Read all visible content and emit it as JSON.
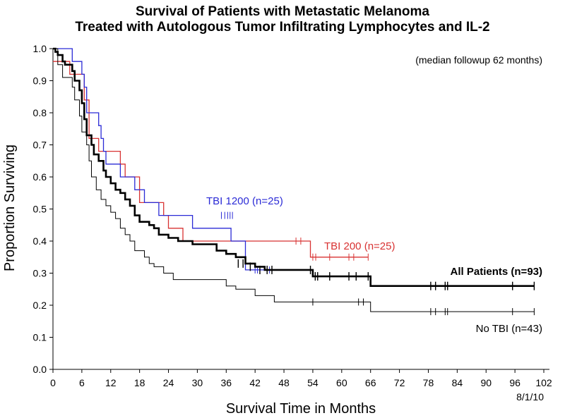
{
  "chart_data": {
    "type": "line",
    "title": "Survival of Patients with Metastatic Melanoma",
    "subtitle": "Treated with Autologous Tumor Infiltrating Lymphocytes and IL-2",
    "xlabel": "Survival Time in Months",
    "ylabel": "Proportion Surviving",
    "xlim": [
      0,
      102
    ],
    "ylim": [
      0,
      1.0
    ],
    "x_ticks": [
      "0",
      "6",
      "12",
      "18",
      "24",
      "30",
      "36",
      "42",
      "48",
      "54",
      "60",
      "66",
      "72",
      "78",
      "84",
      "90",
      "96",
      "102"
    ],
    "y_ticks": [
      "0.0",
      "0.1",
      "0.2",
      "0.3",
      "0.4",
      "0.5",
      "0.6",
      "0.7",
      "0.8",
      "0.9",
      "1.0"
    ],
    "annotation": "(median followup 62 months)",
    "date_note": "8/1/10",
    "grid": false,
    "series": [
      {
        "name": "TBI 1200 (n=25)",
        "color": "#2b2bd6",
        "width": 1.3,
        "steps": [
          [
            0,
            1.0
          ],
          [
            4,
            0.96
          ],
          [
            6,
            0.92
          ],
          [
            6.5,
            0.88
          ],
          [
            7,
            0.8
          ],
          [
            9.5,
            0.76
          ],
          [
            10,
            0.72
          ],
          [
            10.5,
            0.68
          ],
          [
            11,
            0.64
          ],
          [
            14,
            0.6
          ],
          [
            17,
            0.56
          ],
          [
            19,
            0.52
          ],
          [
            22,
            0.48
          ],
          [
            29,
            0.44
          ],
          [
            37,
            0.4
          ],
          [
            40,
            0.31
          ],
          [
            45,
            0.31
          ]
        ],
        "censored": [
          [
            35,
            0.48
          ],
          [
            35.7,
            0.48
          ],
          [
            36.3,
            0.48
          ],
          [
            36.8,
            0.48
          ],
          [
            37.3,
            0.48
          ],
          [
            42,
            0.31
          ],
          [
            42.5,
            0.31
          ],
          [
            43,
            0.31
          ],
          [
            45,
            0.31
          ]
        ]
      },
      {
        "name": "TBI 200 (n=25)",
        "color": "#d83232",
        "width": 1.3,
        "steps": [
          [
            0,
            0.96
          ],
          [
            3.5,
            0.92
          ],
          [
            6.5,
            0.84
          ],
          [
            7.5,
            0.72
          ],
          [
            9.5,
            0.68
          ],
          [
            14,
            0.64
          ],
          [
            15,
            0.6
          ],
          [
            18,
            0.52
          ],
          [
            23,
            0.48
          ],
          [
            24,
            0.44
          ],
          [
            27,
            0.4
          ],
          [
            53.5,
            0.35
          ],
          [
            65.5,
            0.35
          ]
        ],
        "censored": [
          [
            50.5,
            0.4
          ],
          [
            51.5,
            0.4
          ],
          [
            54,
            0.35
          ],
          [
            54.6,
            0.35
          ],
          [
            57.5,
            0.35
          ],
          [
            61.5,
            0.35
          ],
          [
            62.5,
            0.35
          ],
          [
            65.5,
            0.35
          ]
        ]
      },
      {
        "name": "All Patients (n=93)",
        "color": "#000000",
        "width": 2.6,
        "steps": [
          [
            0,
            1.0
          ],
          [
            0.5,
            0.99
          ],
          [
            1,
            0.98
          ],
          [
            2,
            0.96
          ],
          [
            2.5,
            0.95
          ],
          [
            4,
            0.93
          ],
          [
            4.5,
            0.9
          ],
          [
            5.5,
            0.87
          ],
          [
            6,
            0.83
          ],
          [
            6.5,
            0.78
          ],
          [
            7,
            0.73
          ],
          [
            8,
            0.7
          ],
          [
            8.5,
            0.67
          ],
          [
            9.5,
            0.65
          ],
          [
            10.5,
            0.62
          ],
          [
            11,
            0.6
          ],
          [
            12,
            0.58
          ],
          [
            13,
            0.56
          ],
          [
            14,
            0.55
          ],
          [
            15,
            0.53
          ],
          [
            16,
            0.51
          ],
          [
            17,
            0.48
          ],
          [
            18,
            0.46
          ],
          [
            20,
            0.45
          ],
          [
            21,
            0.44
          ],
          [
            22,
            0.42
          ],
          [
            24,
            0.41
          ],
          [
            26,
            0.4
          ],
          [
            29,
            0.39
          ],
          [
            34,
            0.37
          ],
          [
            36,
            0.36
          ],
          [
            38,
            0.35
          ],
          [
            40,
            0.33
          ],
          [
            42,
            0.32
          ],
          [
            44,
            0.31
          ],
          [
            54,
            0.29
          ],
          [
            66,
            0.26
          ],
          [
            100,
            0.26
          ]
        ],
        "censored": [
          [
            38.5,
            0.33
          ],
          [
            39.5,
            0.33
          ],
          [
            41,
            0.32
          ],
          [
            43,
            0.31
          ],
          [
            44.5,
            0.31
          ],
          [
            45.5,
            0.31
          ],
          [
            53.5,
            0.31
          ],
          [
            54.5,
            0.29
          ],
          [
            55,
            0.29
          ],
          [
            57.5,
            0.29
          ],
          [
            61.5,
            0.29
          ],
          [
            63,
            0.29
          ],
          [
            65.5,
            0.29
          ],
          [
            78.5,
            0.26
          ],
          [
            79.5,
            0.26
          ],
          [
            81.5,
            0.26
          ],
          [
            82,
            0.26
          ],
          [
            95.5,
            0.26
          ],
          [
            100,
            0.26
          ]
        ]
      },
      {
        "name": "No TBI (n=43)",
        "color": "#000000",
        "width": 1.0,
        "steps": [
          [
            0,
            1.0
          ],
          [
            1,
            0.95
          ],
          [
            2,
            0.91
          ],
          [
            4,
            0.88
          ],
          [
            4.5,
            0.84
          ],
          [
            5.5,
            0.79
          ],
          [
            6,
            0.74
          ],
          [
            7,
            0.7
          ],
          [
            7.5,
            0.65
          ],
          [
            8,
            0.6
          ],
          [
            9,
            0.56
          ],
          [
            10,
            0.53
          ],
          [
            11,
            0.51
          ],
          [
            12,
            0.49
          ],
          [
            13,
            0.47
          ],
          [
            14,
            0.44
          ],
          [
            15,
            0.42
          ],
          [
            16,
            0.4
          ],
          [
            17,
            0.37
          ],
          [
            19,
            0.35
          ],
          [
            20,
            0.33
          ],
          [
            21,
            0.32
          ],
          [
            23,
            0.3
          ],
          [
            25,
            0.28
          ],
          [
            36,
            0.26
          ],
          [
            38,
            0.25
          ],
          [
            42,
            0.23
          ],
          [
            46,
            0.21
          ],
          [
            66,
            0.18
          ],
          [
            100,
            0.18
          ]
        ],
        "censored": [
          [
            54,
            0.21
          ],
          [
            63.5,
            0.21
          ],
          [
            64.5,
            0.21
          ],
          [
            78.5,
            0.18
          ],
          [
            79.5,
            0.18
          ],
          [
            81.5,
            0.18
          ],
          [
            82,
            0.18
          ],
          [
            95.5,
            0.18
          ],
          [
            100,
            0.18
          ]
        ]
      }
    ]
  }
}
